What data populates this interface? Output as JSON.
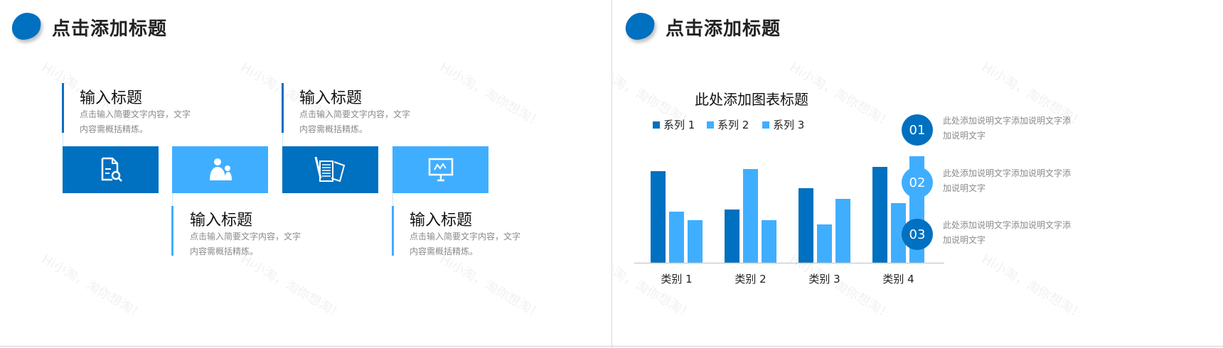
{
  "watermark": "Hi小淘，淘你想淘！",
  "colors": {
    "dark": "#0070C0",
    "light": "#40AEFF"
  },
  "left_slide": {
    "title": "点击添加标题",
    "items": [
      {
        "title": "输入标题",
        "desc": "点击输入简要文字内容，文字内容需概括精炼。",
        "icon": "document-search-icon",
        "color": "dark"
      },
      {
        "title": "输入标题",
        "desc": "点击输入简要文字内容，文字内容需概括精炼。",
        "icon": "users-icon",
        "color": "light"
      },
      {
        "title": "输入标题",
        "desc": "点击输入简要文字内容，文字内容需概括精炼。",
        "icon": "notes-pen-icon",
        "color": "dark"
      },
      {
        "title": "输入标题",
        "desc": "点击输入简要文字内容，文字内容需概括精炼。",
        "icon": "presentation-board-icon",
        "color": "light"
      }
    ]
  },
  "right_slide": {
    "title": "点击添加标题",
    "notes": [
      {
        "num": "01",
        "text": "此处添加说明文字添加说明文字添加说明文字",
        "color": "dark"
      },
      {
        "num": "02",
        "text": "此处添加说明文字添加说明文字添加说明文字",
        "color": "light"
      },
      {
        "num": "03",
        "text": "此处添加说明文字添加说明文字添加说明文字",
        "color": "dark"
      }
    ]
  },
  "chart_data": {
    "type": "bar",
    "title": "此处添加图表标题",
    "categories": [
      "类别 1",
      "类别 2",
      "类别 3",
      "类别 4"
    ],
    "series": [
      {
        "name": "系列 1",
        "values": [
          4.3,
          2.5,
          3.5,
          4.5
        ],
        "color": "#0070C0"
      },
      {
        "name": "系列 2",
        "values": [
          2.4,
          4.4,
          1.8,
          2.8
        ],
        "color": "#40AEFF"
      },
      {
        "name": "系列 3",
        "values": [
          2.0,
          2.0,
          3.0,
          5.0
        ],
        "color": "#40AEFF"
      }
    ],
    "ylim": [
      0,
      5.2
    ],
    "grid": false,
    "legend": "top"
  }
}
